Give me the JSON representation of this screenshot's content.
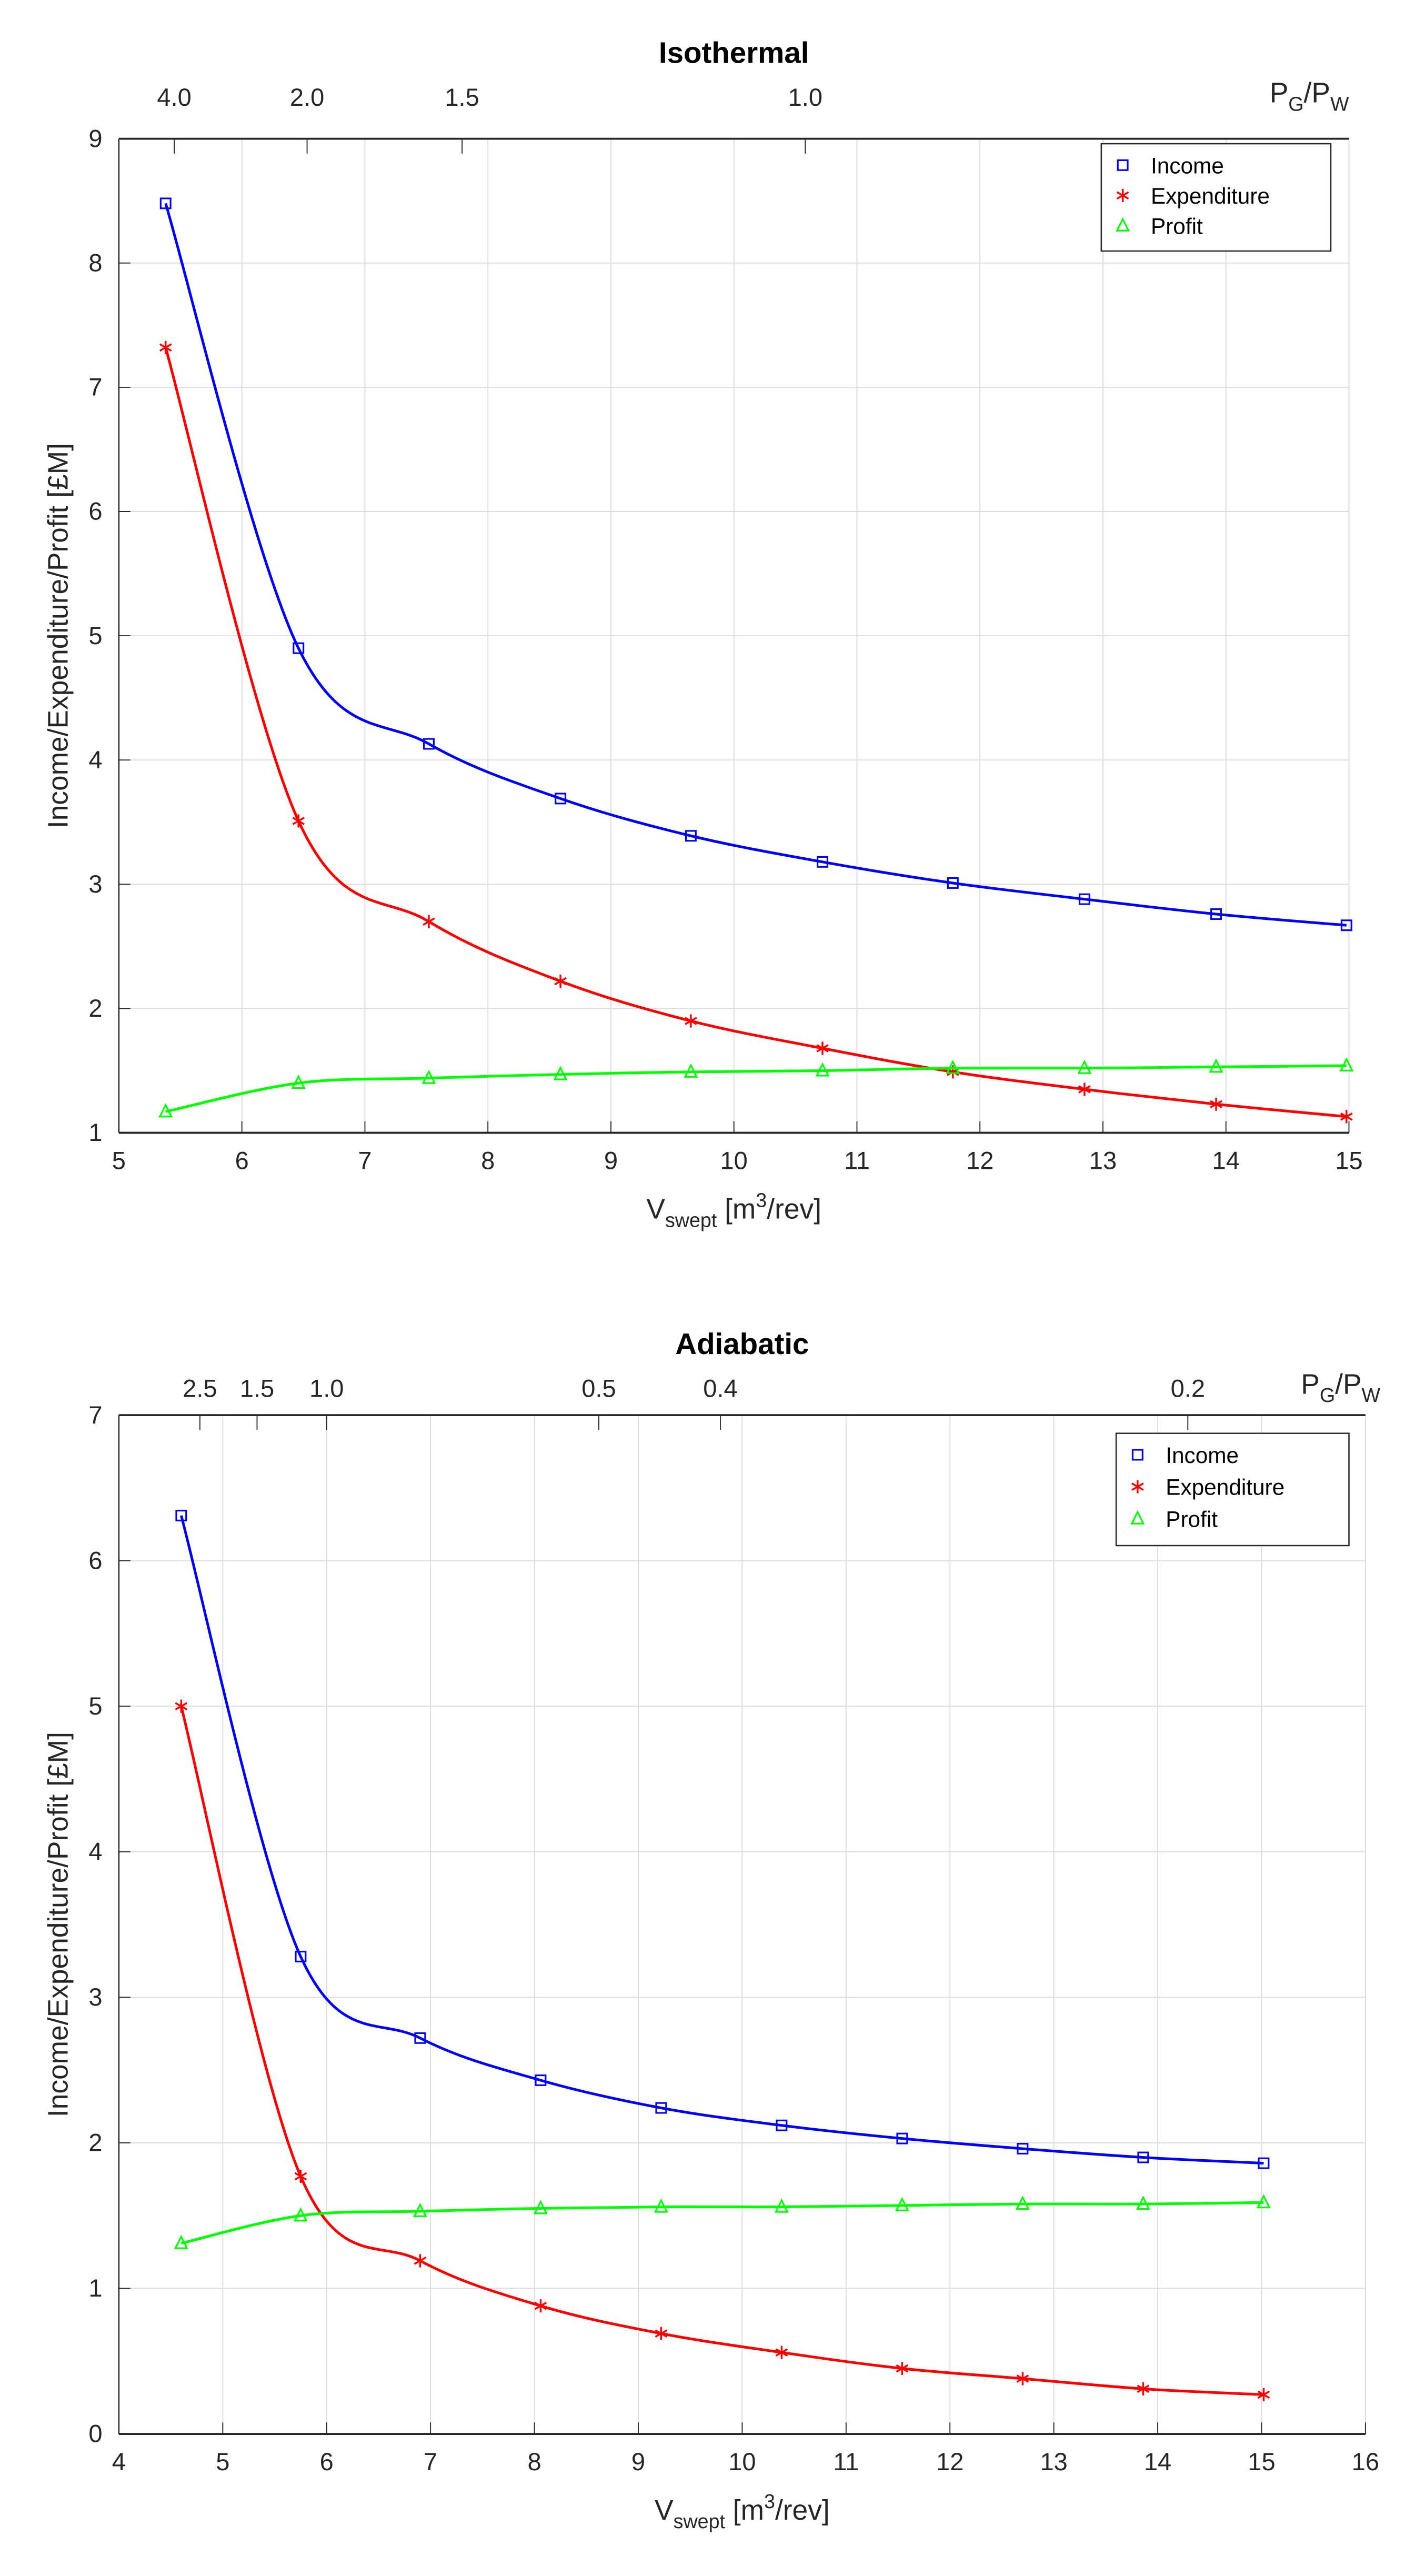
{
  "chart_data": [
    {
      "type": "line",
      "title": "Isothermal",
      "xlabel": {
        "main": "V",
        "sub": "swept",
        "pre": " [m",
        "sup": "3",
        "post": "/rev]"
      },
      "ylabel": "Income/Expenditure/Profit [£M]",
      "top_axis_label": {
        "p1": "P",
        "s1": "G",
        "p2": "/P",
        "s2": "W"
      },
      "xlim": [
        5,
        15
      ],
      "ylim": [
        1,
        9
      ],
      "xticks": [
        5,
        6,
        7,
        8,
        9,
        10,
        11,
        12,
        13,
        14,
        15
      ],
      "yticks": [
        1,
        2,
        3,
        4,
        5,
        6,
        7,
        8,
        9
      ],
      "top_ticks": [
        {
          "label": "4.0",
          "at_x": 5.45
        },
        {
          "label": "2.0",
          "at_x": 6.53
        },
        {
          "label": "1.5",
          "at_x": 7.79
        },
        {
          "label": "1.0",
          "at_x": 10.58
        }
      ],
      "grid": true,
      "legend_placement": "top-right",
      "x": [
        5.38,
        6.46,
        7.52,
        8.59,
        9.65,
        10.72,
        11.78,
        12.85,
        13.92,
        14.98
      ],
      "series": [
        {
          "name": "Income",
          "color": "#0000ff",
          "marker": "square",
          "values": [
            8.48,
            4.9,
            4.13,
            3.69,
            3.39,
            3.18,
            3.01,
            2.88,
            2.76,
            2.67
          ]
        },
        {
          "name": "Expenditure",
          "color": "#ff0000",
          "marker": "asterisk",
          "values": [
            7.32,
            3.51,
            2.7,
            2.22,
            1.9,
            1.68,
            1.49,
            1.35,
            1.23,
            1.13
          ]
        },
        {
          "name": "Profit",
          "color": "#00ff00",
          "marker": "triangle",
          "values": [
            1.17,
            1.4,
            1.44,
            1.47,
            1.49,
            1.5,
            1.52,
            1.52,
            1.53,
            1.54
          ]
        }
      ]
    },
    {
      "type": "line",
      "title": "Adiabatic",
      "xlabel": {
        "main": "V",
        "sub": "swept",
        "pre": " [m",
        "sup": "3",
        "post": "/rev]"
      },
      "ylabel": "Income/Expenditure/Profit [£M]",
      "top_axis_label": {
        "p1": "P",
        "s1": "G",
        "p2": "/P",
        "s2": "W"
      },
      "xlim": [
        4,
        16
      ],
      "ylim": [
        0,
        7
      ],
      "xticks": [
        4,
        5,
        6,
        7,
        8,
        9,
        10,
        11,
        12,
        13,
        14,
        15,
        16
      ],
      "yticks": [
        0,
        1,
        2,
        3,
        4,
        5,
        6,
        7
      ],
      "top_ticks": [
        {
          "label": "2.5",
          "at_x": 4.78
        },
        {
          "label": "1.5",
          "at_x": 5.33
        },
        {
          "label": "1.0",
          "at_x": 6.0
        },
        {
          "label": "0.5",
          "at_x": 8.62
        },
        {
          "label": "0.4",
          "at_x": 9.79
        },
        {
          "label": "0.2",
          "at_x": 14.29
        }
      ],
      "grid": true,
      "legend_placement": "top-right",
      "x": [
        4.6,
        5.75,
        6.9,
        8.06,
        9.22,
        10.38,
        11.54,
        12.7,
        13.86,
        15.02
      ],
      "series": [
        {
          "name": "Income",
          "color": "#0000ff",
          "marker": "square",
          "values": [
            6.31,
            3.28,
            2.72,
            2.43,
            2.24,
            2.12,
            2.03,
            1.96,
            1.9,
            1.86
          ]
        },
        {
          "name": "Expenditure",
          "color": "#ff0000",
          "marker": "asterisk",
          "values": [
            5.0,
            1.77,
            1.19,
            0.88,
            0.69,
            0.56,
            0.45,
            0.38,
            0.31,
            0.27
          ]
        },
        {
          "name": "Profit",
          "color": "#00ff00",
          "marker": "triangle",
          "values": [
            1.31,
            1.5,
            1.53,
            1.55,
            1.56,
            1.56,
            1.57,
            1.58,
            1.58,
            1.59
          ]
        }
      ]
    }
  ]
}
